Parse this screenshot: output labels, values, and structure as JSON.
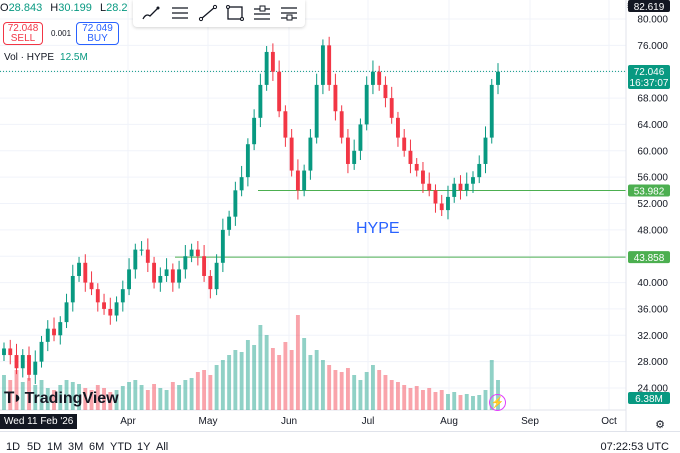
{
  "legend": {
    "open_key": "O",
    "open": "28.843",
    "high_key": "H",
    "high": "30.199",
    "low_key": "L",
    "low": "28.2"
  },
  "trade": {
    "sell_price": "72.048",
    "sell_label": "SELL",
    "buy_price": "72.049",
    "buy_label": "BUY",
    "spread": "0.001"
  },
  "volume": {
    "label": "Vol · HYPE",
    "value": "12.5M"
  },
  "toolbar_icons": [
    "brush-icon",
    "horizontal-lines-icon",
    "trend-line-icon",
    "rectangle-icon",
    "long-position-icon",
    "short-position-icon"
  ],
  "annotation": "HYPE",
  "date_tag": "Wed 11 Feb '26",
  "logo": "TradingView",
  "timeframes": [
    "1D",
    "5D",
    "1M",
    "3M",
    "6M",
    "YTD",
    "1Y",
    "All"
  ],
  "clock": "07:22:53 UTC",
  "colors": {
    "up": "#089981",
    "down": "#f23645",
    "level": "#4caf50",
    "text_accent": "#2962ff"
  },
  "chart_data": {
    "type": "candlestick",
    "x_tick_labels": [
      "Apr",
      "May",
      "Jun",
      "Jul",
      "Aug",
      "Sep",
      "Oct"
    ],
    "y_tick_labels": [
      "24.000",
      "28.000",
      "32.000",
      "36.000",
      "40.000",
      "44.000",
      "48.000",
      "52.000",
      "56.000",
      "60.000",
      "64.000",
      "68.000",
      "72.000",
      "76.000",
      "80.000"
    ],
    "ylim": [
      23.5,
      82.5
    ],
    "price_labels": {
      "top_value": "82.619",
      "last_price": "72.046",
      "countdown": "16:37:07",
      "level_1": "53.982",
      "level_2": "43.858",
      "volume_value": "6.38M"
    },
    "horizontal_levels": [
      53.982,
      43.858
    ],
    "closes": [
      30,
      29,
      27,
      29,
      26,
      28,
      31,
      33,
      32,
      34,
      37,
      41,
      43,
      40,
      39,
      37,
      36,
      35,
      37,
      39,
      42,
      45,
      45,
      43,
      40,
      41,
      42,
      40,
      42,
      44,
      45,
      44,
      41,
      39,
      43,
      48,
      50,
      54,
      56,
      61,
      65,
      70,
      75,
      72,
      66,
      62,
      57,
      54,
      57,
      62,
      70,
      76,
      70,
      66,
      62,
      58,
      60,
      64,
      70,
      72,
      70,
      68,
      65,
      62,
      60,
      58,
      57,
      55,
      54,
      52,
      51,
      53,
      55,
      54,
      55,
      56,
      58,
      62,
      70,
      72
    ],
    "volumes": [
      0.35,
      0.3,
      0.4,
      0.28,
      0.32,
      0.25,
      0.3,
      0.22,
      0.2,
      0.25,
      0.3,
      0.28,
      0.26,
      0.22,
      0.2,
      0.25,
      0.22,
      0.18,
      0.2,
      0.24,
      0.28,
      0.3,
      0.25,
      0.2,
      0.26,
      0.22,
      0.2,
      0.28,
      0.25,
      0.3,
      0.32,
      0.38,
      0.4,
      0.35,
      0.45,
      0.5,
      0.55,
      0.6,
      0.58,
      0.7,
      0.65,
      0.85,
      0.75,
      0.62,
      0.55,
      0.68,
      0.6,
      0.95,
      0.72,
      0.55,
      0.6,
      0.5,
      0.45,
      0.4,
      0.38,
      0.42,
      0.35,
      0.3,
      0.38,
      0.45,
      0.4,
      0.35,
      0.3,
      0.28,
      0.25,
      0.22,
      0.24,
      0.2,
      0.22,
      0.18,
      0.2,
      0.16,
      0.18,
      0.15,
      0.16,
      0.14,
      0.15,
      0.2,
      0.5,
      0.3
    ]
  }
}
